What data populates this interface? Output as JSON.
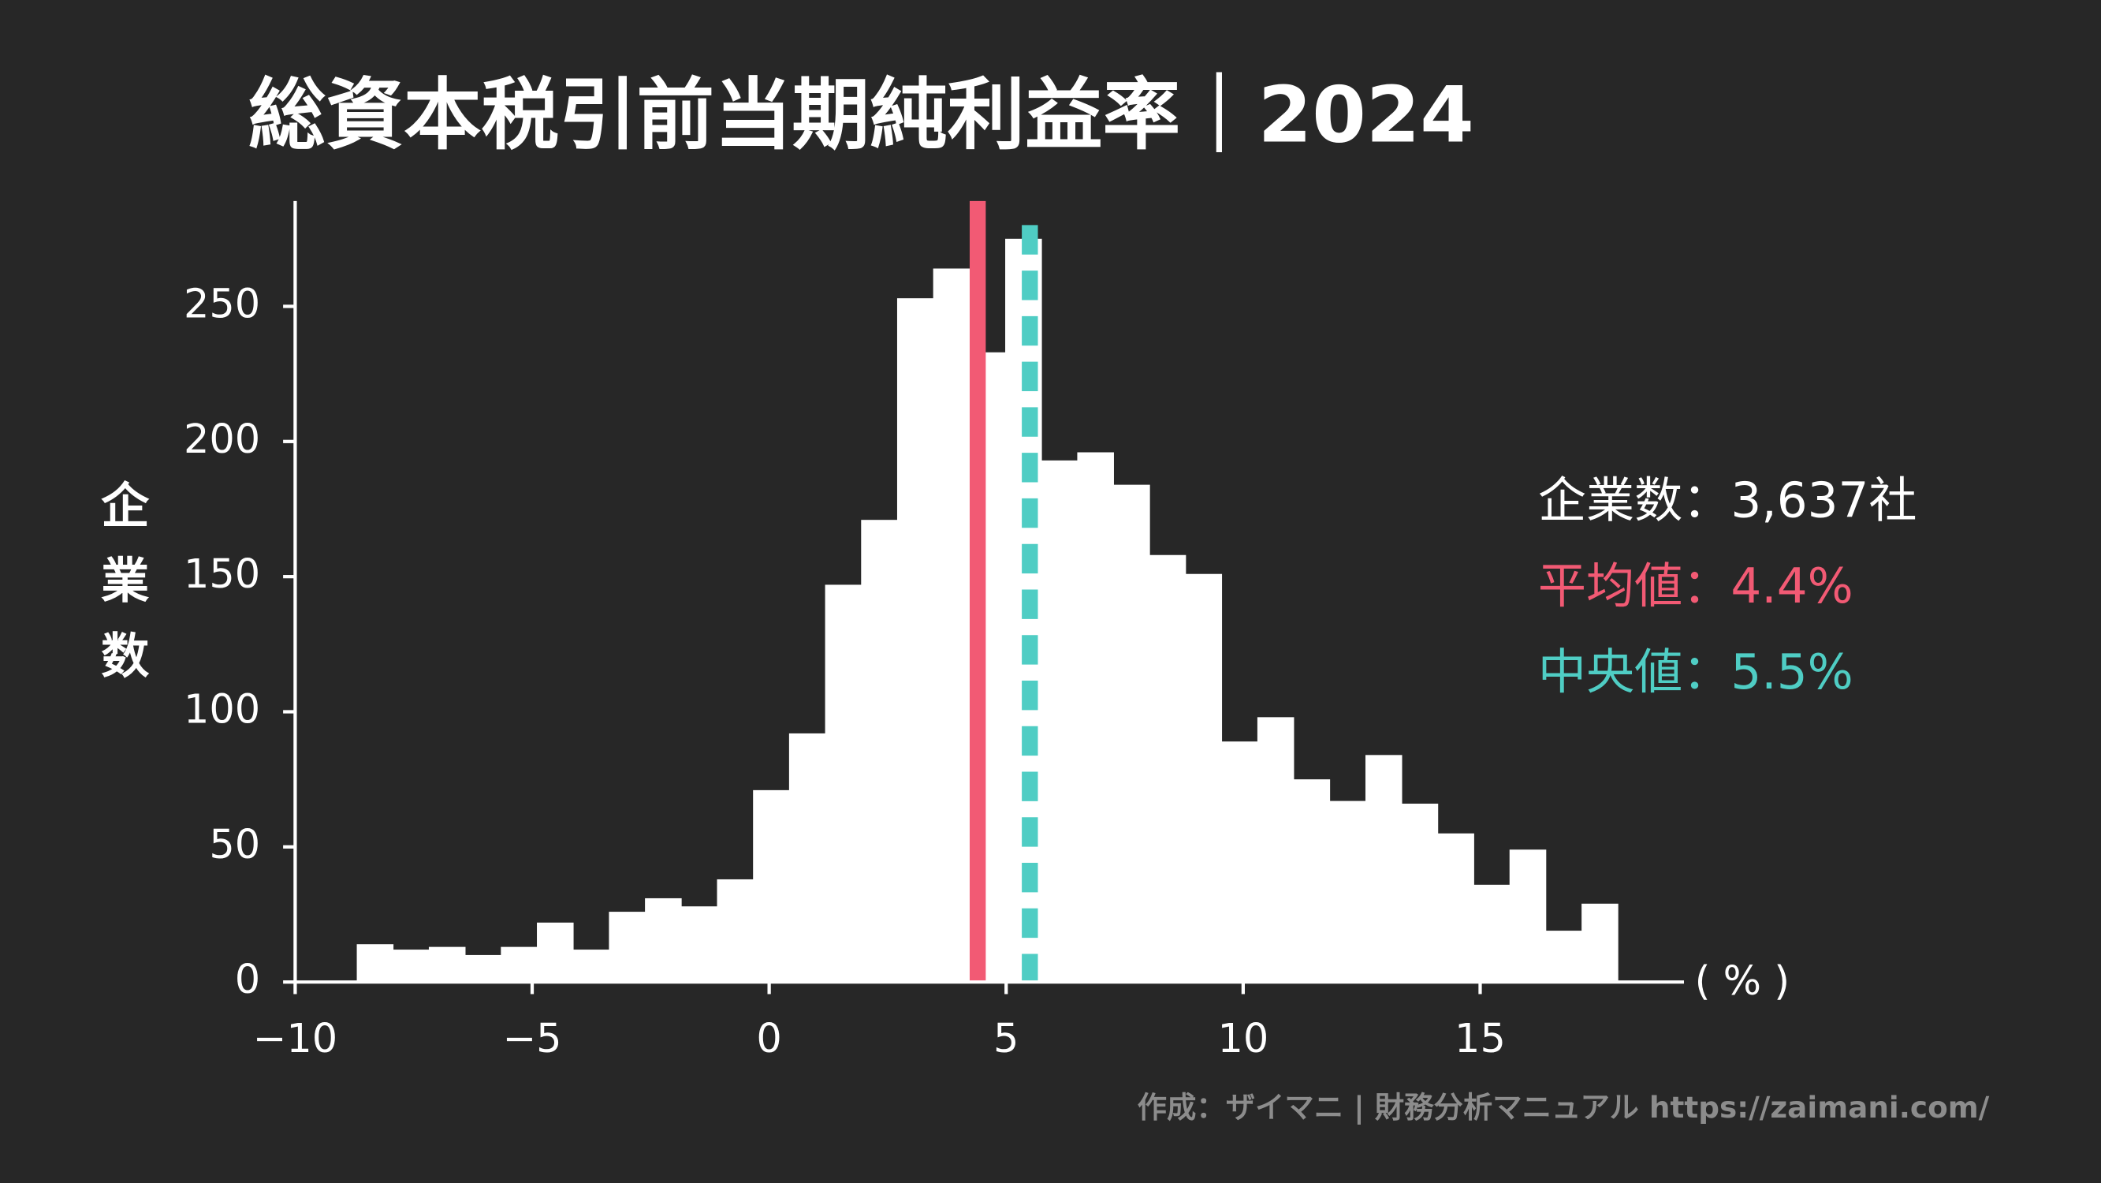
{
  "chart_data": {
    "type": "histogram",
    "title": "総資本税引前当期純利益率｜2024",
    "y_label": "企業数",
    "x_unit": "( % )",
    "bins": [
      -8.7,
      -7.94,
      -7.18,
      -6.42,
      -5.66,
      -4.9,
      -4.14,
      -3.38,
      -2.62,
      -1.86,
      -1.1,
      -0.34,
      0.42,
      1.18,
      1.94,
      2.7,
      3.46,
      4.22,
      4.98,
      5.74,
      6.5,
      7.26,
      8.02,
      8.78,
      9.54,
      10.3,
      11.06,
      11.82,
      12.58,
      13.34,
      14.1,
      14.86,
      15.62,
      16.38,
      17.14,
      17.9
    ],
    "values": [
      14,
      12,
      13,
      10,
      13,
      22,
      12,
      26,
      31,
      28,
      38,
      71,
      92,
      147,
      171,
      253,
      264,
      233,
      275,
      193,
      196,
      184,
      158,
      151,
      89,
      98,
      75,
      67,
      84,
      66,
      55,
      36,
      49,
      19,
      29
    ],
    "color": "#ffffff",
    "xlim": [
      -10,
      19.3
    ],
    "ylim": [
      0,
      289
    ],
    "xticks": [
      {
        "value": -10,
        "label": "−10"
      },
      {
        "value": -5,
        "label": "−5"
      },
      0,
      5,
      10,
      15
    ],
    "yticks": [
      0,
      50,
      100,
      150,
      200,
      250
    ],
    "count_label": "企業数：3,637社",
    "mean": {
      "value": 4.4,
      "label": "平均値：4.4%",
      "color": "#f25a74"
    },
    "median": {
      "value": 5.5,
      "label": "中央値：5.5%",
      "color": "#4fcdc4"
    },
    "credit": "作成：ザイマニ | 財務分析マニュアル https://zaimani.com/"
  }
}
